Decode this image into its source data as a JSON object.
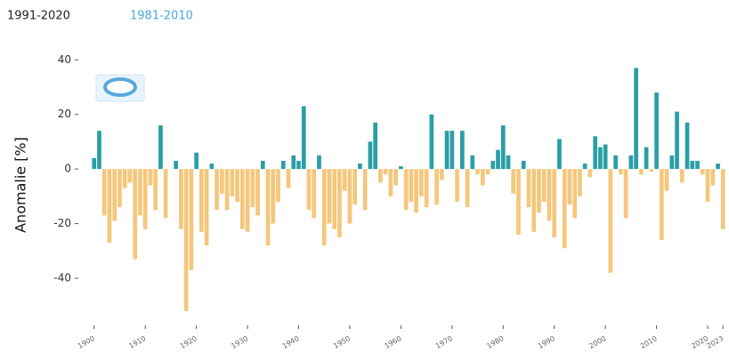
{
  "tabs": [
    "1991-2020",
    "1981-2010"
  ],
  "chart_data": {
    "type": "bar",
    "ylabel": "Anomalie [%]",
    "x": [
      1900,
      1901,
      1902,
      1903,
      1904,
      1905,
      1906,
      1907,
      1908,
      1909,
      1910,
      1911,
      1912,
      1913,
      1914,
      1915,
      1916,
      1917,
      1918,
      1919,
      1920,
      1921,
      1922,
      1923,
      1924,
      1925,
      1926,
      1927,
      1928,
      1929,
      1930,
      1931,
      1932,
      1933,
      1934,
      1935,
      1936,
      1937,
      1938,
      1939,
      1940,
      1941,
      1942,
      1943,
      1944,
      1945,
      1946,
      1947,
      1948,
      1949,
      1950,
      1951,
      1952,
      1953,
      1954,
      1955,
      1956,
      1957,
      1958,
      1959,
      1960,
      1961,
      1962,
      1963,
      1964,
      1965,
      1966,
      1967,
      1968,
      1969,
      1970,
      1971,
      1972,
      1973,
      1974,
      1975,
      1976,
      1977,
      1978,
      1979,
      1980,
      1981,
      1982,
      1983,
      1984,
      1985,
      1986,
      1987,
      1988,
      1989,
      1990,
      1991,
      1992,
      1993,
      1994,
      1995,
      1996,
      1997,
      1998,
      1999,
      2000,
      2001,
      2002,
      2003,
      2004,
      2005,
      2006,
      2007,
      2008,
      2009,
      2010,
      2011,
      2012,
      2013,
      2014,
      2015,
      2016,
      2017,
      2018,
      2019,
      2020,
      2021,
      2022,
      2023
    ],
    "values": [
      4,
      14,
      -17,
      -27,
      -19,
      -14,
      -7,
      -5,
      -33,
      -17,
      -22,
      -6,
      -15,
      16,
      -18,
      0,
      3,
      -22,
      -52,
      -37,
      6,
      -23,
      -28,
      2,
      -15,
      -9,
      -15,
      -10,
      -12,
      -22,
      -23,
      -14,
      -17,
      3,
      -28,
      -20,
      -12,
      3,
      -7,
      5,
      3,
      23,
      -15,
      -18,
      5,
      -28,
      -20,
      -22,
      -25,
      -8,
      -20,
      -13,
      2,
      -15,
      10,
      17,
      -5,
      -2,
      -10,
      -6,
      1,
      -15,
      -12,
      -16,
      -10,
      -14,
      20,
      -13,
      -4,
      14,
      14,
      -12,
      14,
      -14,
      5,
      -2,
      -6,
      -2,
      3,
      7,
      16,
      5,
      -9,
      -24,
      3,
      -14,
      -23,
      -16,
      -12,
      -19,
      -25,
      11,
      -29,
      -13,
      -18,
      -10,
      2,
      -3,
      12,
      8,
      9,
      -38,
      5,
      -2,
      -18,
      5,
      37,
      -2,
      8,
      -1,
      28,
      -26,
      -8,
      5,
      21,
      -5,
      17,
      3,
      3,
      -2,
      -12,
      -6,
      2,
      -22
    ],
    "color_positive": "#2a9fa5",
    "color_negative": "#f4c77c",
    "xlim": [
      1899,
      2024
    ],
    "xticks": [
      1900,
      1910,
      1920,
      1930,
      1940,
      1950,
      1960,
      1970,
      1980,
      1990,
      2000,
      2010,
      2020,
      2023
    ],
    "ylim": [
      -54,
      44
    ],
    "yticks": [
      -40,
      -20,
      0,
      20,
      40
    ]
  }
}
